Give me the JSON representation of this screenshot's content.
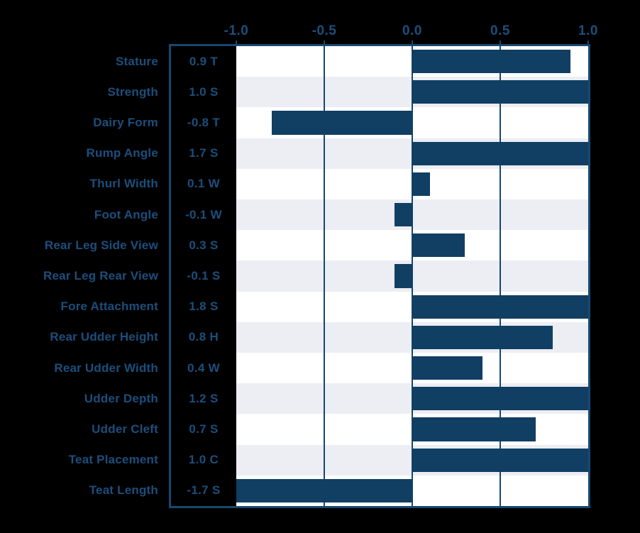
{
  "colors": {
    "background": "#000000",
    "bar": "#113E63",
    "frame": "#17476F",
    "gridline": "#17476F",
    "band_even": "#FFFFFF",
    "band_odd": "#ECEEF3",
    "text": "#1C4E7C"
  },
  "chart_data": {
    "type": "bar",
    "orientation": "horizontal",
    "title": "",
    "xlabel": "",
    "ylabel": "",
    "xlim": [
      -1.0,
      1.0
    ],
    "grid": "vertical",
    "legend": "none",
    "x_ticks": [
      {
        "label": "-1.0",
        "value": -1.0
      },
      {
        "label": "-0.5",
        "value": -0.5
      },
      {
        "label": "0.0",
        "value": 0.0
      },
      {
        "label": "0.5",
        "value": 0.5
      },
      {
        "label": "1.0",
        "value": 1.0
      }
    ],
    "note": "bars are clipped to the -1.0 to 1.0 axis range",
    "rows": [
      {
        "trait": "Stature",
        "value": 0.9,
        "value_label": "0.9 T"
      },
      {
        "trait": "Strength",
        "value": 1.0,
        "value_label": "1.0 S"
      },
      {
        "trait": "Dairy Form",
        "value": -0.8,
        "value_label": "-0.8 T"
      },
      {
        "trait": "Rump Angle",
        "value": 1.7,
        "value_label": "1.7 S"
      },
      {
        "trait": "Thurl Width",
        "value": 0.1,
        "value_label": "0.1 W"
      },
      {
        "trait": "Foot Angle",
        "value": -0.1,
        "value_label": "-0.1 W"
      },
      {
        "trait": "Rear Leg Side View",
        "value": 0.3,
        "value_label": "0.3 S"
      },
      {
        "trait": "Rear Leg Rear View",
        "value": -0.1,
        "value_label": "-0.1 S"
      },
      {
        "trait": "Fore Attachment",
        "value": 1.8,
        "value_label": "1.8 S"
      },
      {
        "trait": "Rear Udder Height",
        "value": 0.8,
        "value_label": "0.8 H"
      },
      {
        "trait": "Rear Udder Width",
        "value": 0.4,
        "value_label": "0.4 W"
      },
      {
        "trait": "Udder Depth",
        "value": 1.2,
        "value_label": "1.2 S"
      },
      {
        "trait": "Udder Cleft",
        "value": 0.7,
        "value_label": "0.7 S"
      },
      {
        "trait": "Teat Placement",
        "value": 1.0,
        "value_label": "1.0 C"
      },
      {
        "trait": "Teat Length",
        "value": -1.7,
        "value_label": "-1.7 S"
      }
    ]
  }
}
